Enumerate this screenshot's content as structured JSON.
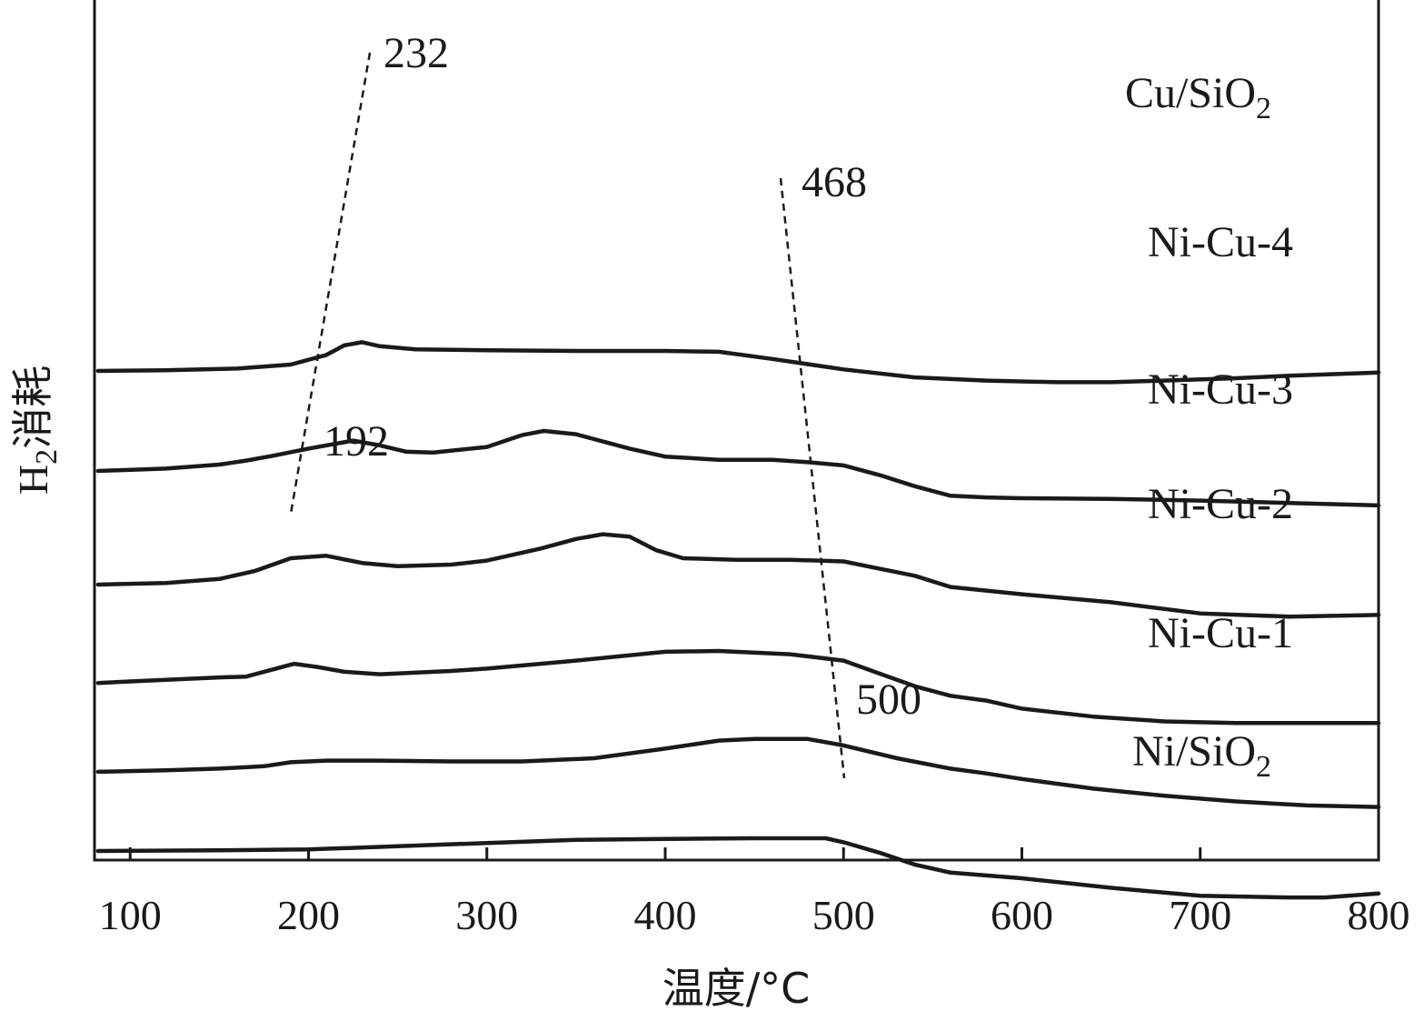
{
  "chart_data": {
    "type": "line",
    "xlabel": "温度/°C",
    "ylabel": {
      "main": "H",
      "sub": "2",
      "rest": "消耗"
    },
    "xlim": [
      80,
      800
    ],
    "x_ticks": [
      100,
      200,
      300,
      400,
      500,
      600,
      700,
      800
    ],
    "y_ticks_shown": false,
    "series": [
      {
        "name": "Cu/SiO2",
        "label": {
          "main": "Cu/SiO",
          "sub": "2"
        },
        "x": [
          82,
          120,
          160,
          190,
          210,
          220,
          230,
          240,
          260,
          300,
          350,
          400,
          430,
          460,
          500,
          540,
          580,
          620,
          650,
          680,
          720,
          750,
          800
        ],
        "y": [
          7.42,
          7.43,
          7.45,
          7.5,
          7.62,
          7.74,
          7.78,
          7.73,
          7.69,
          7.68,
          7.67,
          7.67,
          7.66,
          7.57,
          7.44,
          7.34,
          7.3,
          7.28,
          7.28,
          7.3,
          7.33,
          7.36,
          7.4
        ]
      },
      {
        "name": "Ni-Cu-4",
        "label": {
          "main": "Ni-Cu-4"
        },
        "x": [
          82,
          120,
          150,
          165,
          180,
          200,
          225,
          240,
          255,
          270,
          300,
          320,
          332,
          350,
          380,
          400,
          430,
          460,
          480,
          500,
          520,
          540,
          560,
          580,
          600,
          650,
          700,
          750,
          800
        ],
        "y": [
          6.17,
          6.2,
          6.25,
          6.3,
          6.36,
          6.45,
          6.55,
          6.49,
          6.41,
          6.4,
          6.47,
          6.62,
          6.67,
          6.63,
          6.45,
          6.35,
          6.31,
          6.31,
          6.28,
          6.24,
          6.12,
          5.98,
          5.86,
          5.84,
          5.83,
          5.82,
          5.8,
          5.77,
          5.74
        ]
      },
      {
        "name": "Ni-Cu-3",
        "label": {
          "main": "Ni-Cu-3"
        },
        "x": [
          82,
          120,
          150,
          170,
          190,
          210,
          230,
          250,
          280,
          300,
          330,
          350,
          365,
          380,
          395,
          410,
          440,
          470,
          500,
          520,
          540,
          560,
          600,
          650,
          700,
          750,
          800
        ],
        "y": [
          4.75,
          4.77,
          4.82,
          4.92,
          5.08,
          5.11,
          5.02,
          4.98,
          5.0,
          5.05,
          5.2,
          5.32,
          5.38,
          5.35,
          5.18,
          5.08,
          5.06,
          5.06,
          5.04,
          4.95,
          4.86,
          4.72,
          4.63,
          4.53,
          4.39,
          4.35,
          4.37
        ]
      },
      {
        "name": "Ni-Cu-2",
        "label": {
          "main": "Ni-Cu-2"
        },
        "x": [
          82,
          120,
          150,
          165,
          180,
          192,
          205,
          220,
          240,
          280,
          300,
          350,
          400,
          430,
          470,
          500,
          520,
          540,
          560,
          580,
          600,
          640,
          680,
          720,
          760,
          800
        ],
        "y": [
          3.52,
          3.56,
          3.59,
          3.6,
          3.69,
          3.76,
          3.72,
          3.66,
          3.63,
          3.67,
          3.7,
          3.8,
          3.91,
          3.92,
          3.88,
          3.8,
          3.64,
          3.48,
          3.36,
          3.3,
          3.2,
          3.1,
          3.04,
          3.02,
          3.02,
          3.02
        ]
      },
      {
        "name": "Ni-Cu-1",
        "label": {
          "main": "Ni-Cu-1"
        },
        "x": [
          82,
          120,
          150,
          175,
          190,
          210,
          240,
          280,
          320,
          360,
          400,
          430,
          450,
          480,
          500,
          530,
          560,
          580,
          600,
          640,
          680,
          720,
          760,
          800
        ],
        "y": [
          2.41,
          2.43,
          2.45,
          2.48,
          2.53,
          2.55,
          2.55,
          2.54,
          2.54,
          2.58,
          2.7,
          2.8,
          2.82,
          2.82,
          2.74,
          2.58,
          2.45,
          2.39,
          2.32,
          2.2,
          2.11,
          2.04,
          1.99,
          1.97
        ]
      },
      {
        "name": "Ni/SiO2",
        "label": {
          "main": "Ni/SiO",
          "sub": "2"
        },
        "x": [
          82,
          150,
          200,
          250,
          300,
          350,
          400,
          450,
          490,
          500,
          520,
          540,
          560,
          600,
          650,
          700,
          750,
          770,
          800
        ],
        "y": [
          1.42,
          1.43,
          1.44,
          1.48,
          1.52,
          1.56,
          1.57,
          1.58,
          1.58,
          1.53,
          1.4,
          1.25,
          1.15,
          1.08,
          0.96,
          0.86,
          0.84,
          0.84,
          0.89
        ]
      }
    ],
    "annotations": [
      {
        "text": "232",
        "x": 232
      },
      {
        "text": "468",
        "x": 468
      },
      {
        "text": "192",
        "x": 192
      },
      {
        "text": "500",
        "x": 500
      }
    ]
  }
}
